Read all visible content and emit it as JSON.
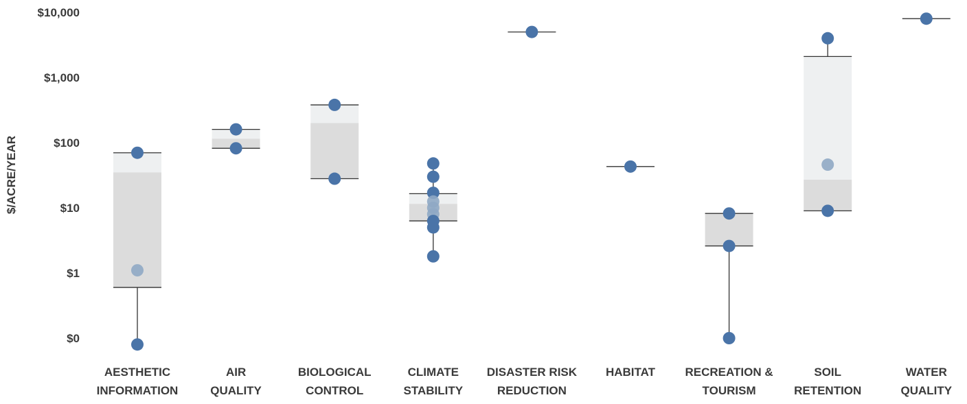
{
  "chart_data": {
    "type": "box_strip",
    "title": "",
    "xlabel": "",
    "ylabel": "$/ACRE/YEAR",
    "y_scale": "log",
    "ylim": [
      0.1,
      10000
    ],
    "y_ticks": [
      0.1,
      1,
      10,
      100,
      1000,
      10000
    ],
    "y_tick_labels": [
      "$0",
      "$1",
      "$10",
      "$100",
      "$1,000",
      "$10,000"
    ],
    "grid": false,
    "legend": "none",
    "colors": {
      "point": "#4a74a8",
      "point_inner": "#8fa8c4",
      "box_upper": "#eef0f1",
      "box_lower": "#dcdcdc",
      "line": "#333333"
    },
    "categories": [
      {
        "label_lines": [
          "AESTHETIC",
          "INFORMATION"
        ],
        "points": [
          70,
          1.1,
          0.08
        ],
        "box": {
          "q1": 0.6,
          "median": 35,
          "q3": 70
        },
        "whisker": [
          0.08,
          0.6
        ]
      },
      {
        "label_lines": [
          "AIR",
          "QUALITY"
        ],
        "points": [
          160,
          82
        ],
        "box": {
          "q1": 82,
          "median": 115,
          "q3": 160
        },
        "whisker": null
      },
      {
        "label_lines": [
          "BIOLOGICAL",
          "CONTROL"
        ],
        "points": [
          380,
          28
        ],
        "box": {
          "q1": 28,
          "median": 200,
          "q3": 380
        },
        "whisker": null
      },
      {
        "label_lines": [
          "CLIMATE",
          "STABILITY"
        ],
        "points": [
          48,
          30,
          17,
          12.5,
          10,
          8,
          6.3,
          5,
          1.8
        ],
        "box": {
          "q1": 6.3,
          "median": 11.5,
          "q3": 16.5
        },
        "whisker": [
          1.8,
          48
        ]
      },
      {
        "label_lines": [
          "DISASTER RISK",
          "REDUCTION"
        ],
        "points": [
          5000
        ],
        "box": null,
        "whisker": null,
        "line_at": 5000
      },
      {
        "label_lines": [
          "HABITAT"
        ],
        "points": [
          43
        ],
        "box": null,
        "whisker": null,
        "line_at": 43
      },
      {
        "label_lines": [
          "RECREATION &",
          "TOURISM"
        ],
        "points": [
          8.2,
          2.6,
          0.1
        ],
        "box": {
          "q1": 2.6,
          "median": 8.2,
          "q3": 8.2
        },
        "whisker": [
          0.1,
          2.6
        ]
      },
      {
        "label_lines": [
          "SOIL",
          "RETENTION"
        ],
        "points": [
          4000,
          46,
          9
        ],
        "box": {
          "q1": 9,
          "median": 27,
          "q3": 2100
        },
        "whisker": [
          2100,
          4000
        ]
      },
      {
        "label_lines": [
          "WATER",
          "QUALITY"
        ],
        "points": [
          8000
        ],
        "box": null,
        "whisker": null,
        "line_at": 8000
      }
    ]
  }
}
